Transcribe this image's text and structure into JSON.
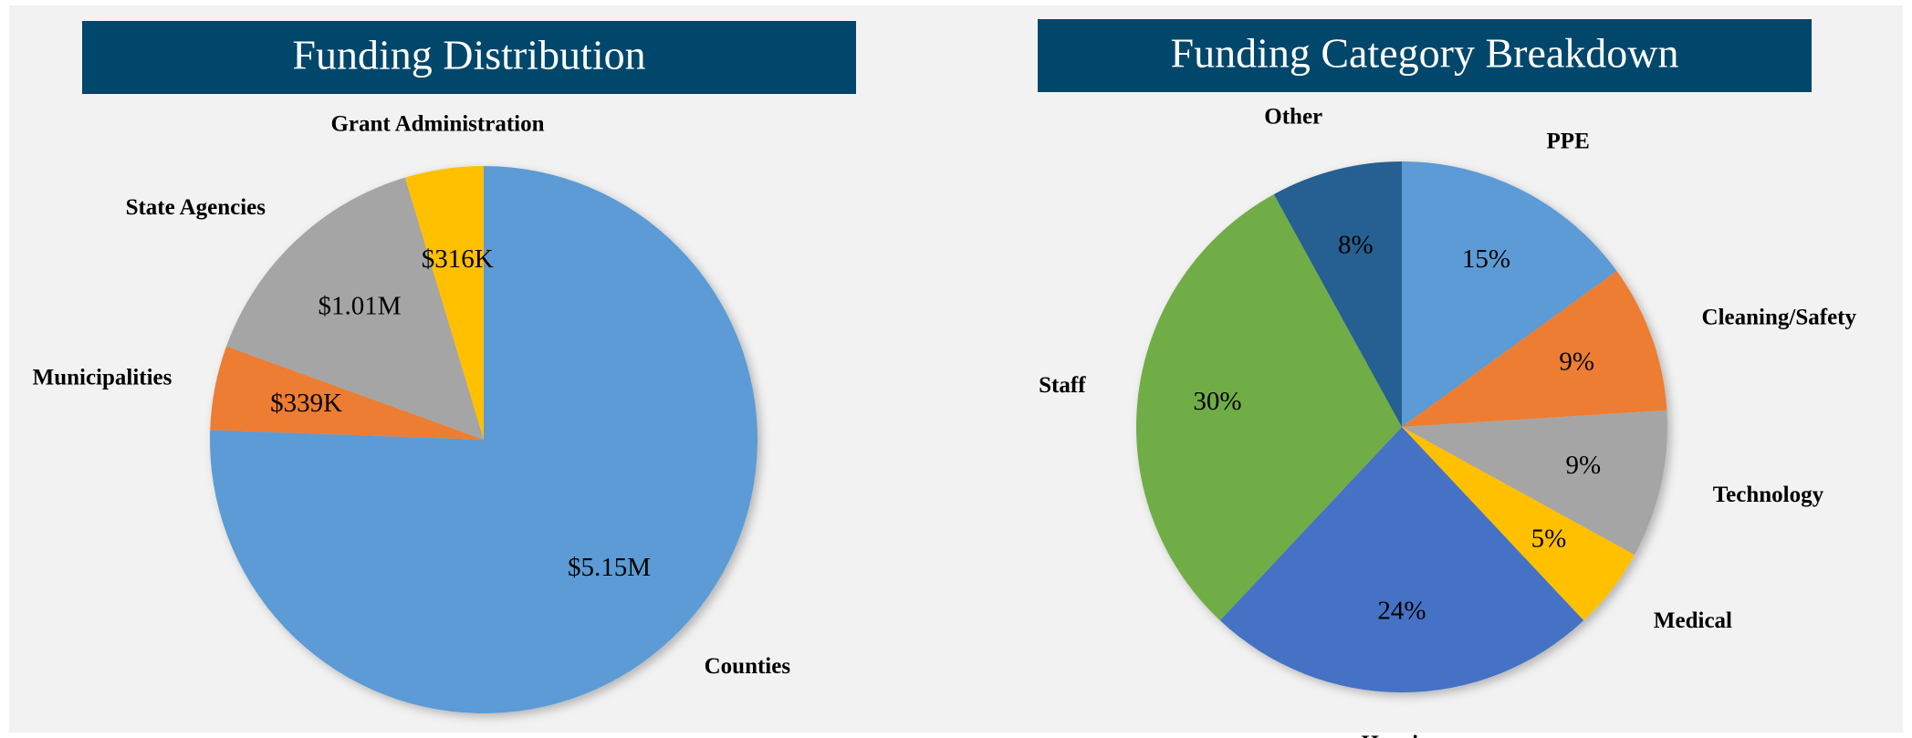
{
  "chart_data": [
    {
      "type": "pie",
      "title": "Funding Distribution",
      "categories": [
        "Counties",
        "Municipalities",
        "State Agencies",
        "Grant Administration"
      ],
      "values": [
        5150000,
        339000,
        1010000,
        316000
      ],
      "value_labels": [
        "$5.15M",
        "$339K",
        "$1.01M",
        "$316K"
      ],
      "colors": [
        "#5b9bd5",
        "#ed7d31",
        "#a5a5a5",
        "#ffc000"
      ]
    },
    {
      "type": "pie",
      "title": "Funding Category Breakdown",
      "categories": [
        "PPE",
        "Cleaning/Safety",
        "Technology",
        "Medical",
        "Housing",
        "Staff",
        "Other"
      ],
      "values": [
        15,
        9,
        9,
        5,
        24,
        30,
        8
      ],
      "value_labels": [
        "15%",
        "9%",
        "9%",
        "5%",
        "24%",
        "30%",
        "8%"
      ],
      "colors": [
        "#5b9bd5",
        "#ed7d31",
        "#a5a5a5",
        "#ffc000",
        "#4472c4",
        "#70ad47",
        "#255e91"
      ]
    }
  ]
}
